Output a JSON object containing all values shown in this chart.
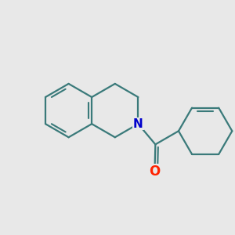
{
  "bg_color": "#e8e8e8",
  "bond_color": "#3a7a7a",
  "N_color": "#0000cc",
  "O_color": "#ff2200",
  "bond_width": 1.6,
  "dbo": 0.012,
  "fsN": 11,
  "fsO": 12
}
